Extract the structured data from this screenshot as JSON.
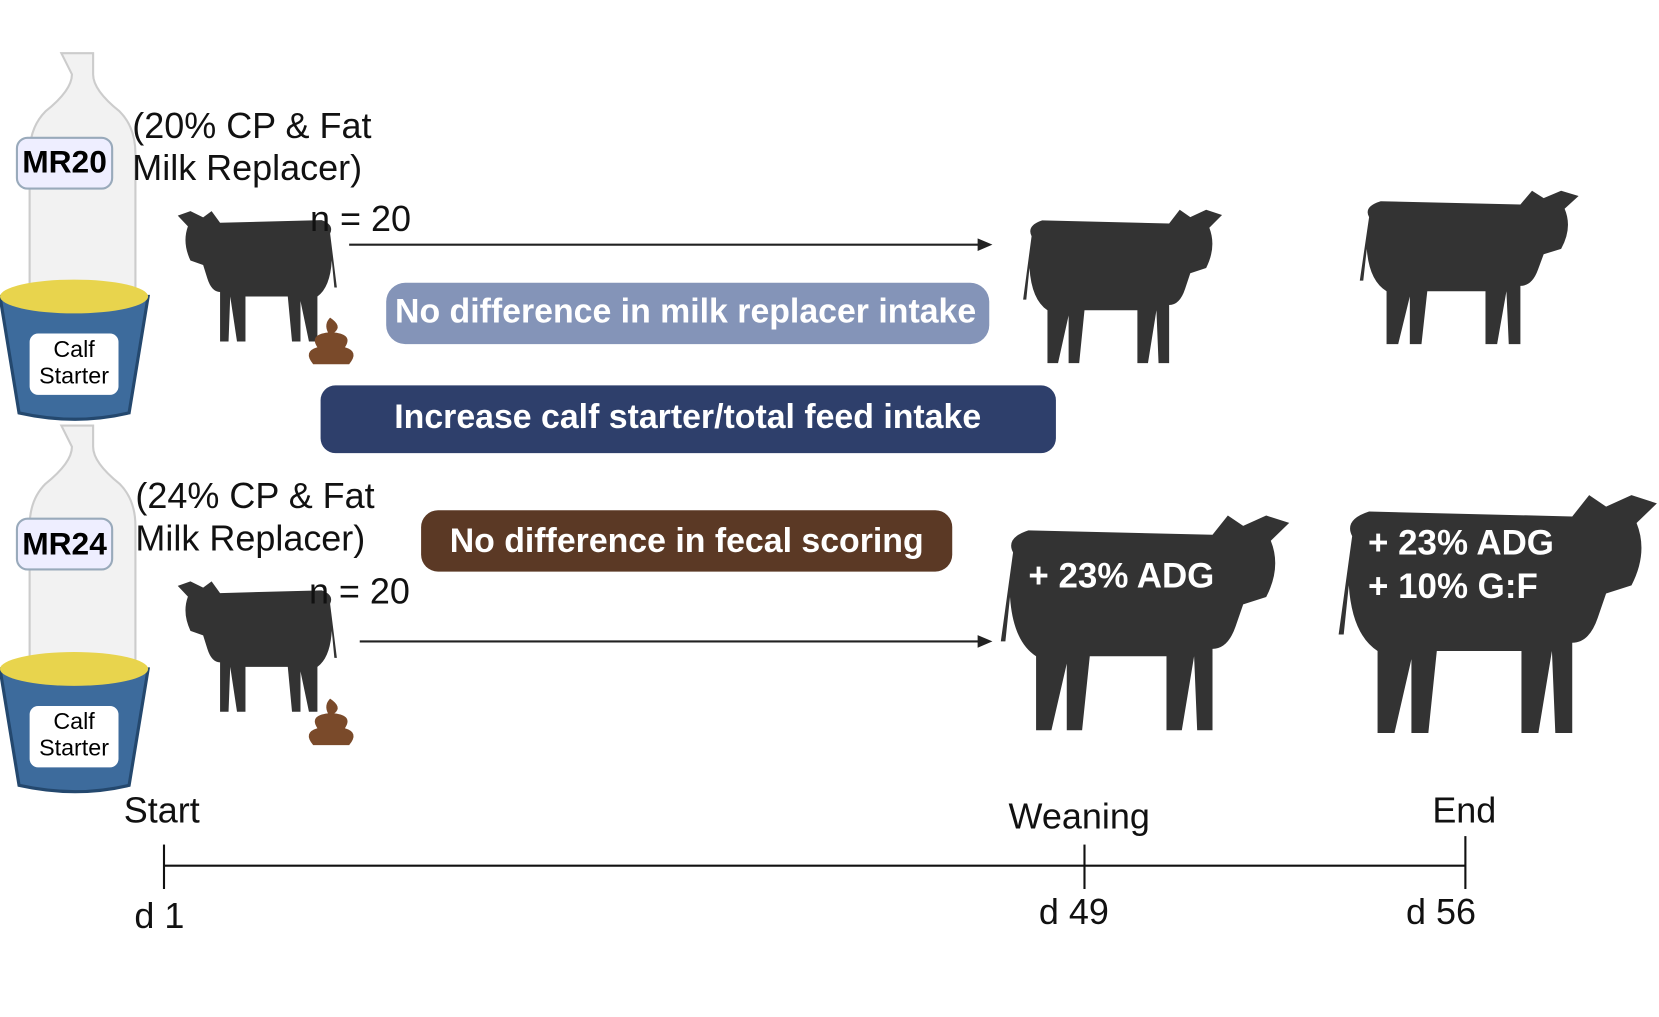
{
  "groups": [
    {
      "label": "MR20",
      "description": [
        "(20% CP & Fat",
        "Milk Replacer)"
      ],
      "feed": [
        "Calf",
        "Starter"
      ],
      "n": "n = 20"
    },
    {
      "label": "MR24",
      "description": [
        "(24% CP & Fat",
        "Milk Replacer)"
      ],
      "feed": [
        "Calf",
        "Starter"
      ],
      "n": "n = 20"
    }
  ],
  "findings": [
    "No difference in milk replacer intake",
    "Increase calf starter/total feed intake",
    "No difference in fecal scoring"
  ],
  "outcomes": {
    "weaning": [
      "+ 23% ADG"
    ],
    "end": [
      "+ 23% ADG",
      "+ 10% G:F"
    ]
  },
  "timeline": [
    {
      "label": "Start",
      "day": "d 1"
    },
    {
      "label": "Weaning",
      "day": "d 49"
    },
    {
      "label": "End",
      "day": "d 56"
    }
  ]
}
